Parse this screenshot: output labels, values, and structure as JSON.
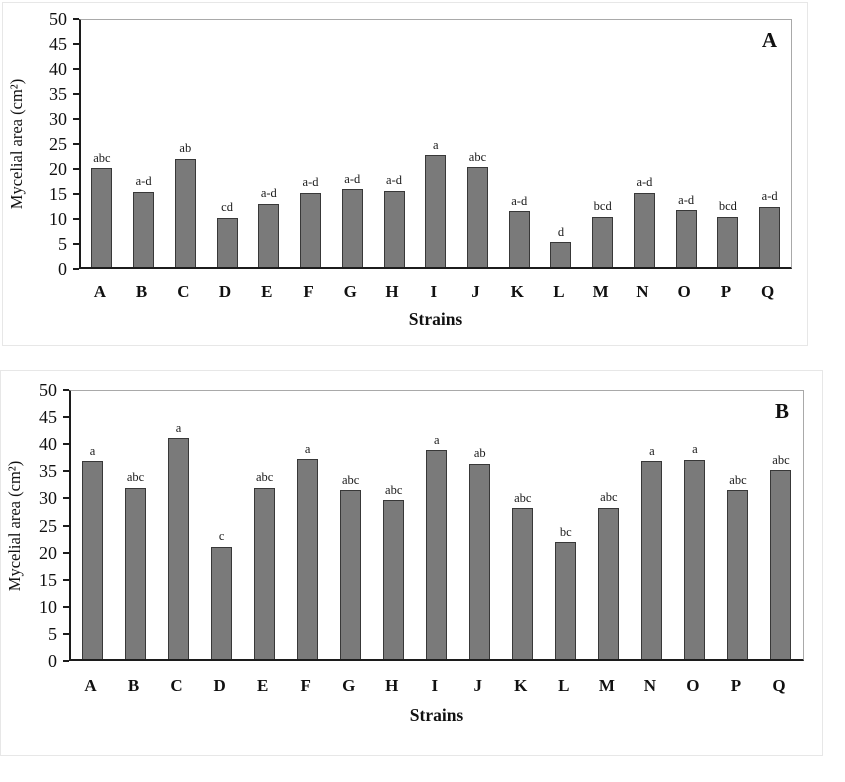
{
  "page": {
    "background": "#ffffff"
  },
  "chart_data": [
    {
      "type": "bar",
      "panel_label": "A",
      "title": "",
      "xlabel": "Strains",
      "ylabel": "Mycelial area (cm²)",
      "ylim": [
        0,
        50
      ],
      "ytick_step": 5,
      "grid": "off",
      "legend": "none",
      "categories": [
        "A",
        "B",
        "C",
        "D",
        "E",
        "F",
        "G",
        "H",
        "I",
        "J",
        "K",
        "L",
        "M",
        "N",
        "O",
        "P",
        "Q"
      ],
      "values": [
        20.0,
        15.3,
        22.0,
        10.0,
        12.8,
        15.1,
        15.8,
        15.5,
        22.7,
        20.2,
        11.3,
        5.0,
        10.2,
        15.1,
        11.5,
        10.2,
        12.2
      ],
      "bar_labels": [
        "abc",
        "a-d",
        "ab",
        "cd",
        "a-d",
        "a-d",
        "a-d",
        "a-d",
        "a",
        "abc",
        "a-d",
        "d",
        "bcd",
        "a-d",
        "a-d",
        "bcd",
        "a-d"
      ],
      "bar_color": "#7a7a7a",
      "bar_border_color": "#383838"
    },
    {
      "type": "bar",
      "panel_label": "B",
      "title": "",
      "xlabel": "Strains",
      "ylabel": "Mycelial area (cm²)",
      "ylim": [
        0,
        50
      ],
      "ytick_step": 5,
      "grid": "off",
      "legend": "none",
      "categories": [
        "A",
        "B",
        "C",
        "D",
        "E",
        "F",
        "G",
        "H",
        "I",
        "J",
        "K",
        "L",
        "M",
        "N",
        "O",
        "P",
        "Q"
      ],
      "values": [
        37.0,
        32.0,
        41.3,
        21.0,
        32.0,
        37.3,
        31.5,
        29.7,
        39.0,
        36.5,
        28.2,
        21.8,
        28.3,
        37.0,
        37.2,
        31.5,
        35.3
      ],
      "bar_labels": [
        "a",
        "abc",
        "a",
        "c",
        "abc",
        "a",
        "abc",
        "abc",
        "a",
        "ab",
        "abc",
        "bc",
        "abc",
        "a",
        "a",
        "abc",
        "abc"
      ],
      "bar_color": "#7a7a7a",
      "bar_border_color": "#383838"
    }
  ]
}
